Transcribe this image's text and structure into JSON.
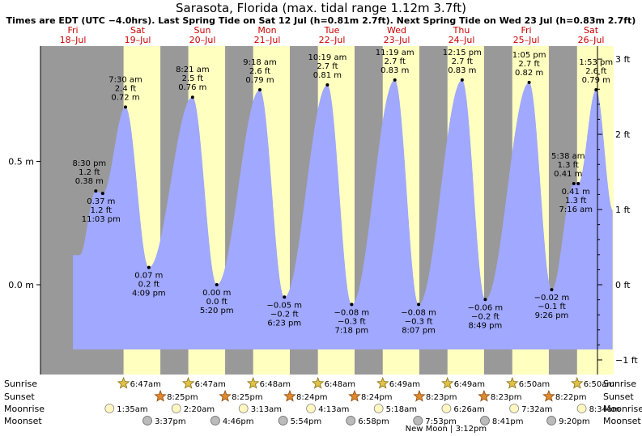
{
  "title": "Sarasota, Florida (max. tidal range 1.12m 3.7ft)",
  "subtitle": "Times are EDT (UTC −4.0hrs). Last Spring Tide on Sat 12 Jul (h=0.81m 2.7ft). Next Spring Tide on Wed 23 Jul (h=0.83m 2.7ft)",
  "colors": {
    "day": "#ffffc0",
    "night": "#999999",
    "tide_fill": "#a0a8ff",
    "date_text": "#cc0000"
  },
  "chart_data": {
    "type": "area",
    "x_unit": "hours since Fri 18-Jul 00:00 EDT",
    "ylabel_left_unit": "m",
    "ylabel_right_unit": "ft",
    "ylim_m": [
      -0.33,
      0.95
    ],
    "left_ticks": [
      {
        "v": 0.5,
        "label": "0.5 m"
      },
      {
        "v": 0.0,
        "label": "0.0 m"
      }
    ],
    "right_ticks": [
      {
        "v": 3,
        "label": "3 ft"
      },
      {
        "v": 2,
        "label": "2 ft"
      },
      {
        "v": 1,
        "label": "1 ft"
      },
      {
        "v": 0,
        "label": "0 ft"
      },
      {
        "v": -1,
        "label": "−1 ft"
      }
    ],
    "days": [
      {
        "dow": "Fri",
        "date": "18–Jul",
        "h": 12
      },
      {
        "dow": "Sat",
        "date": "19–Jul",
        "h": 36
      },
      {
        "dow": "Sun",
        "date": "20–Jul",
        "h": 60
      },
      {
        "dow": "Mon",
        "date": "21–Jul",
        "h": 84
      },
      {
        "dow": "Tue",
        "date": "22–Jul",
        "h": 108
      },
      {
        "dow": "Wed",
        "date": "23–Jul",
        "h": 132
      },
      {
        "dow": "Thu",
        "date": "24–Jul",
        "h": 156
      },
      {
        "dow": "Fri",
        "date": "25–Jul",
        "h": 180
      },
      {
        "dow": "Sat",
        "date": "26–Jul",
        "h": 204
      }
    ],
    "daylight": [
      {
        "rise": 30.78,
        "set": 44.42
      },
      {
        "rise": 54.78,
        "set": 68.42
      },
      {
        "rise": 78.8,
        "set": 92.4
      },
      {
        "rise": 102.8,
        "set": 116.4
      },
      {
        "rise": 126.82,
        "set": 140.38
      },
      {
        "rise": 150.82,
        "set": 164.38
      },
      {
        "rise": 174.83,
        "set": 188.38
      },
      {
        "rise": 198.83,
        "set": 212.37
      }
    ],
    "extremes": [
      {
        "h": 20.5,
        "m": 0.38,
        "type": "high",
        "label": [
          "8:30 pm",
          "1.2 ft",
          "0.38 m"
        ]
      },
      {
        "h": 23.05,
        "m": 0.37,
        "type": "low",
        "label": [
          "0.37 m",
          "1.2 ft",
          "11:03 pm"
        ]
      },
      {
        "h": 31.5,
        "m": 0.72,
        "type": "high",
        "label": [
          "7:30 am",
          "2.4 ft",
          "0.72 m"
        ]
      },
      {
        "h": 40.15,
        "m": 0.07,
        "type": "low",
        "label": [
          "0.07 m",
          "0.2 ft",
          "4:09 pm"
        ]
      },
      {
        "h": 56.35,
        "m": 0.76,
        "type": "high",
        "label": [
          "8:21 am",
          "2.5 ft",
          "0.76 m"
        ]
      },
      {
        "h": 65.33,
        "m": 0.0,
        "type": "low",
        "label": [
          "0.00 m",
          "0.0 ft",
          "5:20 pm"
        ]
      },
      {
        "h": 81.3,
        "m": 0.79,
        "type": "high",
        "label": [
          "9:18 am",
          "2.6 ft",
          "0.79 m"
        ]
      },
      {
        "h": 90.38,
        "m": -0.05,
        "type": "low",
        "label": [
          "−0.05 m",
          "−0.2 ft",
          "6:23 pm"
        ]
      },
      {
        "h": 106.32,
        "m": 0.81,
        "type": "high",
        "label": [
          "10:19 am",
          "2.7 ft",
          "0.81 m"
        ]
      },
      {
        "h": 115.3,
        "m": -0.08,
        "type": "low",
        "label": [
          "−0.08 m",
          "−0.3 ft",
          "7:18 pm"
        ]
      },
      {
        "h": 131.32,
        "m": 0.83,
        "type": "high",
        "label": [
          "11:19 am",
          "2.7 ft",
          "0.83 m"
        ]
      },
      {
        "h": 140.12,
        "m": -0.08,
        "type": "low",
        "label": [
          "−0.08 m",
          "−0.3 ft",
          "8:07 pm"
        ]
      },
      {
        "h": 156.25,
        "m": 0.83,
        "type": "high",
        "label": [
          "12:15 pm",
          "2.7 ft",
          "0.83 m"
        ]
      },
      {
        "h": 164.82,
        "m": -0.06,
        "type": "low",
        "label": [
          "−0.06 m",
          "−0.2 ft",
          "8:49 pm"
        ]
      },
      {
        "h": 181.08,
        "m": 0.82,
        "type": "high",
        "label": [
          "1:05 pm",
          "2.7 ft",
          "0.82 m"
        ]
      },
      {
        "h": 189.43,
        "m": -0.02,
        "type": "low",
        "label": [
          "−0.02 m",
          "−0.1 ft",
          "9:26 pm"
        ]
      },
      {
        "h": 197.63,
        "m": 0.41,
        "type": "high",
        "label": [
          "5:38 am",
          "1.3 ft",
          "0.41 m"
        ]
      },
      {
        "h": 199.27,
        "m": 0.41,
        "type": "low",
        "label": [
          "0.41 m",
          "1.3 ft",
          "7:16 am"
        ]
      },
      {
        "h": 205.88,
        "m": 0.79,
        "type": "high",
        "label": [
          "1:53 pm",
          "2.6 ft",
          "0.79 m"
        ]
      }
    ]
  },
  "sun_moon": {
    "row_labels": {
      "sunrise": "Sunrise",
      "sunset": "Sunset",
      "moonrise": "Moonrise",
      "moonset": "Moonset"
    },
    "sunrise": [
      {
        "h": 30.78,
        "t": "6:47am"
      },
      {
        "h": 54.78,
        "t": "6:47am"
      },
      {
        "h": 78.8,
        "t": "6:48am"
      },
      {
        "h": 102.8,
        "t": "6:48am"
      },
      {
        "h": 126.82,
        "t": "6:49am"
      },
      {
        "h": 150.82,
        "t": "6:49am"
      },
      {
        "h": 174.83,
        "t": "6:50am"
      },
      {
        "h": 198.83,
        "t": "6:50am"
      }
    ],
    "sunset": [
      {
        "h": 44.42,
        "t": "8:25pm"
      },
      {
        "h": 68.42,
        "t": "8:25pm"
      },
      {
        "h": 92.4,
        "t": "8:24pm"
      },
      {
        "h": 116.4,
        "t": "8:24pm"
      },
      {
        "h": 140.38,
        "t": "8:23pm"
      },
      {
        "h": 164.38,
        "t": "8:23pm"
      },
      {
        "h": 188.37,
        "t": "8:22pm"
      }
    ],
    "moonrise": [
      {
        "h": 25.58,
        "t": "1:35am"
      },
      {
        "h": 50.33,
        "t": "2:20am"
      },
      {
        "h": 75.22,
        "t": "3:13am"
      },
      {
        "h": 100.22,
        "t": "4:13am"
      },
      {
        "h": 125.3,
        "t": "5:18am"
      },
      {
        "h": 150.43,
        "t": "6:26am"
      },
      {
        "h": 175.53,
        "t": "7:32am"
      },
      {
        "h": 200.57,
        "t": "8:34am"
      }
    ],
    "moonset": [
      {
        "h": 39.62,
        "t": "3:37pm"
      },
      {
        "h": 64.77,
        "t": "4:46pm"
      },
      {
        "h": 89.9,
        "t": "5:54pm"
      },
      {
        "h": 114.97,
        "t": "6:58pm"
      },
      {
        "h": 139.88,
        "t": "7:53pm"
      },
      {
        "h": 164.68,
        "t": "8:41pm"
      },
      {
        "h": 189.33,
        "t": "9:20pm"
      }
    ],
    "new_moon": {
      "h": 135.2,
      "label": "New Moon | 3:12pm"
    }
  }
}
